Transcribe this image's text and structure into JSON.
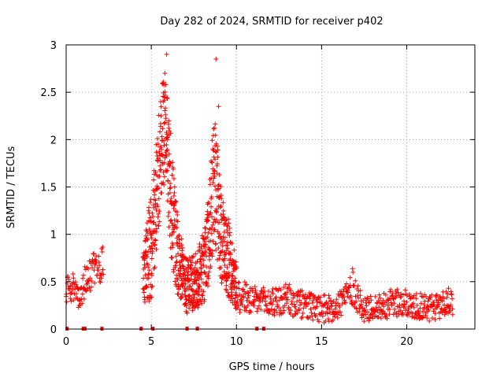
{
  "chart_data": {
    "type": "scatter",
    "title": "Day 282 of 2024, SRMTID for receiver p402",
    "xlabel": "GPS time / hours",
    "ylabel": "SRMTID / TECUs",
    "xlim": [
      0,
      24
    ],
    "ylim": [
      0,
      3
    ],
    "xticks": [
      0,
      5,
      10,
      15,
      20
    ],
    "yticks": [
      0,
      0.5,
      1,
      1.5,
      2,
      2.5,
      3
    ],
    "grid": true,
    "marker": "+",
    "color": "#ff0000",
    "zero_markers": [
      0.05,
      1.0,
      1.1,
      2.1,
      4.4,
      5.1,
      7.1,
      7.7,
      11.2,
      11.6
    ],
    "envelope": [
      {
        "x": 0.0,
        "y": 0.4,
        "spread": 0.15
      },
      {
        "x": 0.4,
        "y": 0.45,
        "spread": 0.15
      },
      {
        "x": 0.8,
        "y": 0.3,
        "spread": 0.1
      },
      {
        "x": 1.2,
        "y": 0.55,
        "spread": 0.2
      },
      {
        "x": 1.6,
        "y": 0.6,
        "spread": 0.2
      },
      {
        "x": 2.2,
        "y": 0.7,
        "spread": 0.2
      },
      {
        "x": 4.5,
        "y": 0.5,
        "spread": 0.25
      },
      {
        "x": 5.0,
        "y": 0.9,
        "spread": 0.6
      },
      {
        "x": 5.4,
        "y": 1.6,
        "spread": 0.6
      },
      {
        "x": 5.8,
        "y": 2.2,
        "spread": 0.6
      },
      {
        "x": 6.2,
        "y": 1.3,
        "spread": 0.6
      },
      {
        "x": 6.6,
        "y": 0.7,
        "spread": 0.4
      },
      {
        "x": 7.0,
        "y": 0.45,
        "spread": 0.3
      },
      {
        "x": 7.6,
        "y": 0.5,
        "spread": 0.3
      },
      {
        "x": 8.2,
        "y": 0.7,
        "spread": 0.4
      },
      {
        "x": 8.7,
        "y": 1.6,
        "spread": 0.7
      },
      {
        "x": 9.1,
        "y": 1.0,
        "spread": 0.5
      },
      {
        "x": 9.6,
        "y": 0.7,
        "spread": 0.4
      },
      {
        "x": 10.2,
        "y": 0.35,
        "spread": 0.2
      },
      {
        "x": 11.0,
        "y": 0.3,
        "spread": 0.15
      },
      {
        "x": 12.0,
        "y": 0.28,
        "spread": 0.15
      },
      {
        "x": 13.0,
        "y": 0.3,
        "spread": 0.18
      },
      {
        "x": 14.0,
        "y": 0.25,
        "spread": 0.15
      },
      {
        "x": 15.0,
        "y": 0.2,
        "spread": 0.15
      },
      {
        "x": 16.0,
        "y": 0.25,
        "spread": 0.15
      },
      {
        "x": 16.8,
        "y": 0.45,
        "spread": 0.2
      },
      {
        "x": 17.5,
        "y": 0.2,
        "spread": 0.12
      },
      {
        "x": 18.5,
        "y": 0.25,
        "spread": 0.15
      },
      {
        "x": 19.5,
        "y": 0.28,
        "spread": 0.15
      },
      {
        "x": 20.5,
        "y": 0.25,
        "spread": 0.15
      },
      {
        "x": 21.5,
        "y": 0.22,
        "spread": 0.15
      },
      {
        "x": 22.7,
        "y": 0.3,
        "spread": 0.15
      }
    ],
    "gaps": [
      [
        2.2,
        4.5
      ],
      [
        22.7,
        24
      ]
    ],
    "peaks": [
      {
        "x": 5.9,
        "y": 2.9
      },
      {
        "x": 8.8,
        "y": 2.85
      },
      {
        "x": 8.95,
        "y": 2.35
      },
      {
        "x": 5.8,
        "y": 2.7
      }
    ]
  }
}
